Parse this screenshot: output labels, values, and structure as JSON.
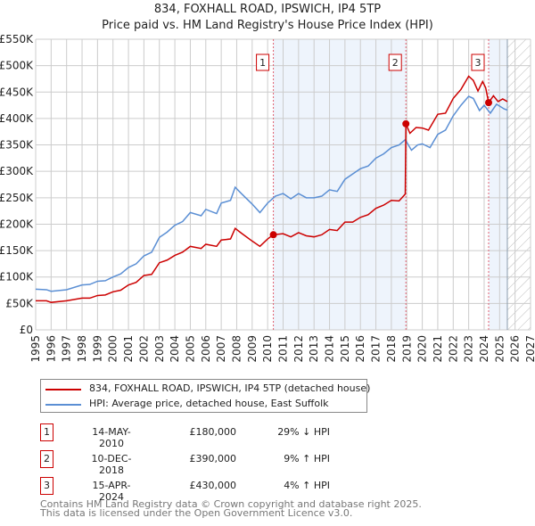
{
  "title": "834, FOXHALL ROAD, IPSWICH, IP4 5TP",
  "subtitle": "Price paid vs. HM Land Registry's House Price Index (HPI)",
  "chart_data": {
    "type": "line",
    "ylim": [
      0,
      550000
    ],
    "xlim": [
      1995,
      2027
    ],
    "yticks": [
      {
        "v": 0,
        "l": "£0"
      },
      {
        "v": 50000,
        "l": "£50K"
      },
      {
        "v": 100000,
        "l": "£100K"
      },
      {
        "v": 150000,
        "l": "£150K"
      },
      {
        "v": 200000,
        "l": "£200K"
      },
      {
        "v": 250000,
        "l": "£250K"
      },
      {
        "v": 300000,
        "l": "£300K"
      },
      {
        "v": 350000,
        "l": "£350K"
      },
      {
        "v": 400000,
        "l": "£400K"
      },
      {
        "v": 450000,
        "l": "£450K"
      },
      {
        "v": 500000,
        "l": "£500K"
      },
      {
        "v": 550000,
        "l": "£550K"
      }
    ],
    "xticks": [
      1995,
      1996,
      1997,
      1998,
      1999,
      2000,
      2001,
      2002,
      2003,
      2004,
      2005,
      2006,
      2007,
      2008,
      2009,
      2010,
      2011,
      2012,
      2013,
      2014,
      2015,
      2016,
      2017,
      2018,
      2019,
      2020,
      2021,
      2022,
      2023,
      2024,
      2025,
      2026,
      2027
    ],
    "grid": true,
    "shaded": [
      [
        2010.37,
        2018.94
      ],
      [
        2024.29,
        2025.5
      ]
    ],
    "forecast_hatch": [
      2025.5,
      2027
    ],
    "series": [
      {
        "name": "834, FOXHALL ROAD, IPSWICH, IP4 5TP (detached house)",
        "color": "#cc0000",
        "x": [
          1995,
          1995.7,
          1996,
          1997,
          1998,
          1998.5,
          1999,
          1999.5,
          2000,
          2000.5,
          2001,
          2001.5,
          2002,
          2002.5,
          2003,
          2003.5,
          2004,
          2004.5,
          2005,
          2005.7,
          2006,
          2006.7,
          2007,
          2007.6,
          2007.9,
          2008.3,
          2009,
          2009.5,
          2010,
          2010.37,
          2011,
          2011.5,
          2012,
          2012.5,
          2013,
          2013.5,
          2014,
          2014.5,
          2015,
          2015.5,
          2016,
          2016.5,
          2017,
          2017.5,
          2018,
          2018.5,
          2018.9,
          2018.94,
          2019.2,
          2019.6,
          2020,
          2020.4,
          2021,
          2021.5,
          2022,
          2022.5,
          2023,
          2023.3,
          2023.6,
          2023.9,
          2024.1,
          2024.29,
          2024.6,
          2024.9,
          2025.2,
          2025.5
        ],
        "y": [
          55000,
          55000,
          52000,
          55000,
          60000,
          60000,
          65000,
          66000,
          72000,
          75000,
          85000,
          90000,
          103000,
          105000,
          127000,
          132000,
          141000,
          147000,
          158000,
          154000,
          162000,
          158000,
          170000,
          172000,
          192000,
          183000,
          168000,
          158000,
          172000,
          180000,
          182000,
          176000,
          184000,
          178000,
          176000,
          180000,
          190000,
          188000,
          204000,
          204000,
          213000,
          218000,
          230000,
          236000,
          245000,
          244000,
          257000,
          390000,
          372000,
          383000,
          382000,
          378000,
          408000,
          410000,
          438000,
          455000,
          480000,
          472000,
          452000,
          470000,
          458000,
          430000,
          443000,
          432000,
          437000,
          432000
        ]
      },
      {
        "name": "HPI: Average price, detached house, East Suffolk",
        "color": "#5b8fd4",
        "x": [
          1995,
          1995.7,
          1996,
          1997,
          1998,
          1998.5,
          1999,
          1999.5,
          2000,
          2000.5,
          2001,
          2001.5,
          2002,
          2002.5,
          2003,
          2003.5,
          2004,
          2004.5,
          2005,
          2005.7,
          2006,
          2006.7,
          2007,
          2007.6,
          2007.9,
          2008.3,
          2009,
          2009.5,
          2010,
          2010.5,
          2011,
          2011.5,
          2012,
          2012.5,
          2013,
          2013.5,
          2014,
          2014.5,
          2015,
          2015.5,
          2016,
          2016.5,
          2017,
          2017.5,
          2018,
          2018.5,
          2018.9,
          2019.3,
          2019.7,
          2020,
          2020.5,
          2021,
          2021.5,
          2022,
          2022.5,
          2023,
          2023.3,
          2023.7,
          2024,
          2024.4,
          2024.8,
          2025.3,
          2025.5
        ],
        "y": [
          77000,
          76000,
          73000,
          76000,
          85000,
          86000,
          92000,
          93000,
          100000,
          106000,
          118000,
          125000,
          140000,
          147000,
          175000,
          185000,
          198000,
          205000,
          222000,
          216000,
          228000,
          220000,
          240000,
          245000,
          270000,
          258000,
          238000,
          222000,
          240000,
          253000,
          258000,
          248000,
          258000,
          250000,
          250000,
          253000,
          265000,
          262000,
          285000,
          295000,
          305000,
          310000,
          325000,
          333000,
          345000,
          350000,
          360000,
          340000,
          350000,
          352000,
          345000,
          370000,
          378000,
          405000,
          425000,
          442000,
          438000,
          415000,
          425000,
          410000,
          427000,
          418000,
          416000
        ]
      }
    ],
    "sales": [
      {
        "label": "1",
        "x": 2010.37,
        "y": 180000
      },
      {
        "label": "2",
        "x": 2018.94,
        "y": 390000
      },
      {
        "label": "3",
        "x": 2024.29,
        "y": 430000
      }
    ]
  },
  "legend": {
    "red": "834, FOXHALL ROAD, IPSWICH, IP4 5TP (detached house)",
    "blue": "HPI: Average price, detached house, East Suffolk"
  },
  "transactions": [
    {
      "n": "1",
      "date": "14-MAY-2010",
      "price": "£180,000",
      "hpi": "29% ↓ HPI"
    },
    {
      "n": "2",
      "date": "10-DEC-2018",
      "price": "£390,000",
      "hpi": "9% ↑ HPI"
    },
    {
      "n": "3",
      "date": "15-APR-2024",
      "price": "£430,000",
      "hpi": "4% ↑ HPI"
    }
  ],
  "footer": {
    "line1": "Contains HM Land Registry data © Crown copyright and database right 2025.",
    "line2": "This data is licensed under the Open Government Licence v3.0."
  }
}
